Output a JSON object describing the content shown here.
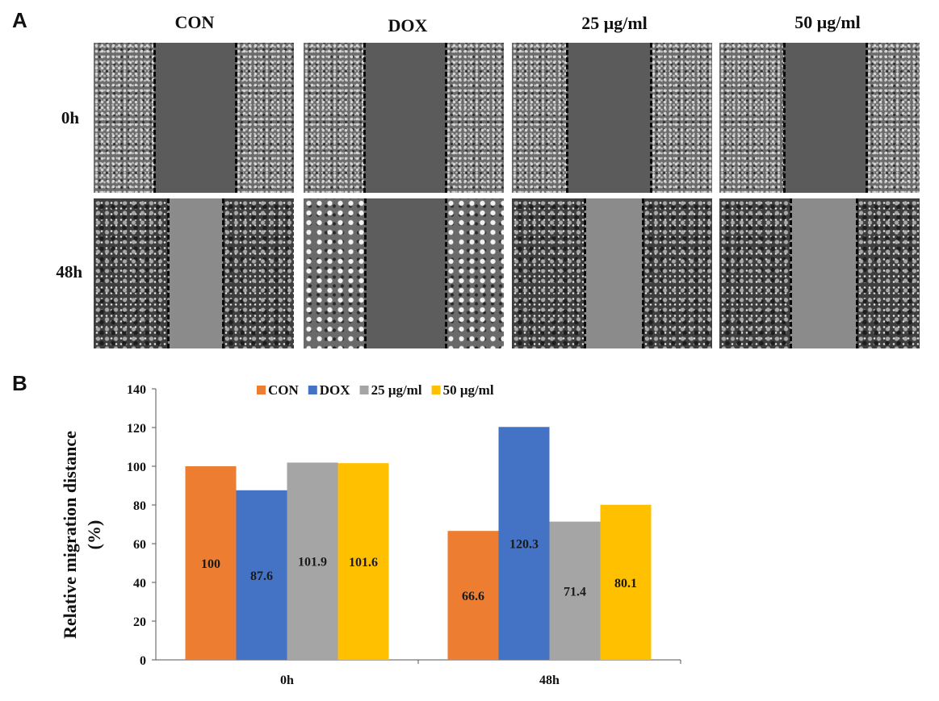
{
  "panel_a": {
    "letter": "A",
    "columns": [
      "CON",
      "DOX",
      "25 μg/ml",
      "50 μg/ml"
    ],
    "rows": [
      "0h",
      "48h"
    ]
  },
  "panel_b": {
    "letter": "B"
  },
  "chart_data": {
    "type": "bar",
    "categories": [
      "0h",
      "48h"
    ],
    "series": [
      {
        "name": "CON",
        "color": "#ED7D31",
        "values": [
          100,
          66.6
        ]
      },
      {
        "name": "DOX",
        "color": "#4472C4",
        "values": [
          87.6,
          120.3
        ]
      },
      {
        "name": "25 μg/ml",
        "color": "#A5A5A5",
        "values": [
          101.9,
          71.4
        ]
      },
      {
        "name": "50 μg/ml",
        "color": "#FFC000",
        "values": [
          101.6,
          80.1
        ]
      }
    ],
    "data_labels": [
      [
        "100",
        "66.6"
      ],
      [
        "87.6",
        "120.3"
      ],
      [
        "101.9",
        "71.4"
      ],
      [
        "101.6",
        "80.1"
      ]
    ],
    "ylabel_line1": "Relative migration distance",
    "ylabel_line2": "(%)",
    "xlabel": "",
    "ylim": [
      0,
      140
    ],
    "yticks": [
      0,
      20,
      40,
      60,
      80,
      100,
      120,
      140
    ],
    "grid": false,
    "legend_position": "top"
  }
}
